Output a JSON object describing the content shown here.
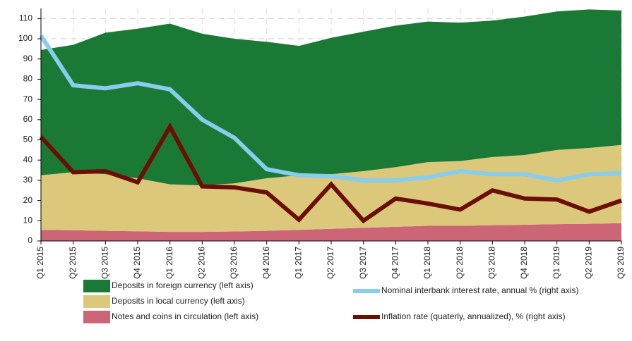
{
  "chart_data": {
    "type": "stacked-area-line",
    "categories": [
      "Q1 2015",
      "Q2 2015",
      "Q3 2015",
      "Q4 2015",
      "Q1 2016",
      "Q2 2016",
      "Q3 2016",
      "Q4 2016",
      "Q1 2017",
      "Q2 2017",
      "Q3 2017",
      "Q4 2017",
      "Q1 2018",
      "Q2 2018",
      "Q3 2018",
      "Q4 2018",
      "Q1 2019",
      "Q2 2019",
      "Q3 2019"
    ],
    "series": [
      {
        "name": "Notes and coins in circulation (left axis)",
        "kind": "area",
        "color": "#cc6677",
        "values": [
          5.5,
          5.3,
          5,
          4.8,
          4.5,
          4.5,
          4.7,
          5,
          5.5,
          6,
          6.5,
          7,
          7.5,
          7.5,
          7.8,
          8,
          8.3,
          8.5,
          8.8
        ]
      },
      {
        "name": "Deposits in local currency (left axis)",
        "kind": "area",
        "color": "#dcc87a",
        "values": [
          27,
          28.7,
          28,
          26.2,
          23.5,
          23,
          23.8,
          26,
          27,
          27,
          28,
          29.5,
          31.5,
          32,
          33.7,
          34.5,
          36.7,
          37.5,
          38.7
        ]
      },
      {
        "name": "Deposits in foreign currency (left axis)",
        "kind": "area",
        "color": "#1a7a35",
        "values": [
          62,
          63,
          70,
          74,
          79.5,
          75,
          71.5,
          67.5,
          64,
          67.5,
          69,
          70,
          69.5,
          68.5,
          67.5,
          68.5,
          68.5,
          68.5,
          66.5
        ]
      },
      {
        "name": "Nominal interbank interest rate, annual % (right axis)",
        "kind": "line",
        "color": "#88ccee",
        "values": [
          101.5,
          77,
          75.5,
          78,
          75,
          60,
          51,
          35.5,
          32.5,
          32,
          30,
          30,
          31.5,
          34.5,
          33,
          33,
          30,
          33,
          33.5
        ]
      },
      {
        "name": "Inflation rate (quaterly, annualized), % (right axis)",
        "kind": "line",
        "color": "#6b0e04",
        "values": [
          51.5,
          34,
          34.5,
          29,
          56.5,
          27,
          26.5,
          24,
          10.5,
          28,
          10,
          21,
          18.5,
          15.5,
          25,
          21,
          20.5,
          14.5,
          20
        ]
      }
    ],
    "ylim": [
      0,
      115
    ],
    "yticks": [
      0,
      10,
      20,
      30,
      40,
      50,
      60,
      70,
      80,
      90,
      100,
      110
    ],
    "grid": true
  }
}
